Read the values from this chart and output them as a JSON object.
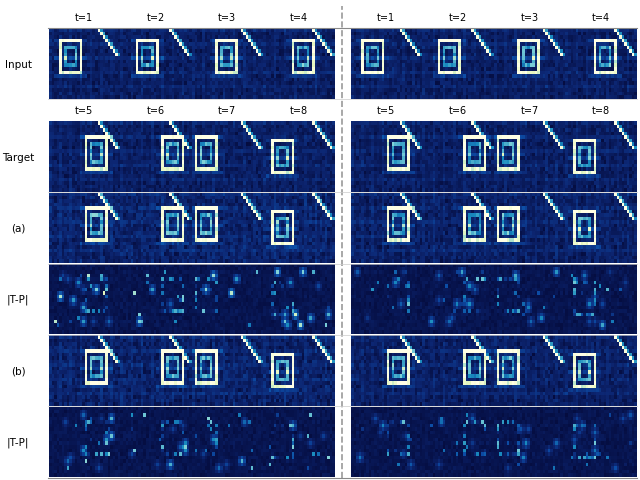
{
  "fig_width": 6.4,
  "fig_height": 4.81,
  "dpi": 100,
  "background_color": "#ffffff",
  "row_labels": [
    "Input",
    "Target",
    "(a)",
    "|T-P|",
    "(b)",
    "|T-P|"
  ],
  "col_labels_row0": [
    "t=1",
    "t=2",
    "t=3",
    "t=4"
  ],
  "col_labels_row1": [
    "t=5",
    "t=6",
    "t=7",
    "t=8"
  ],
  "label_fontsize": 7.5,
  "separator_color": "#999999",
  "separator_style": "--",
  "image_ny": 20,
  "image_nx": 28
}
